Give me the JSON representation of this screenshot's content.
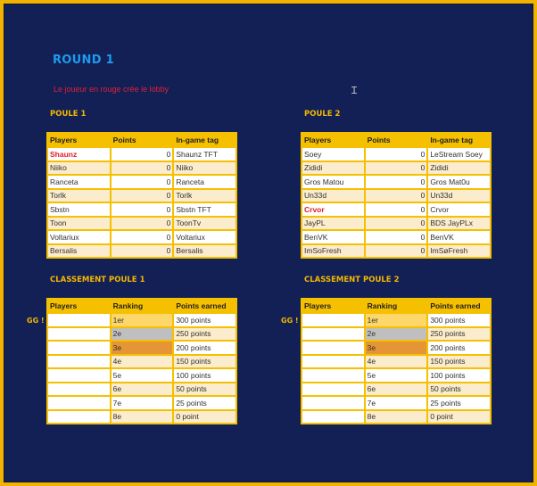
{
  "title": "ROUND 1",
  "note": "Le joueur en rouge crée le lobby",
  "poule1": {
    "heading": "POULE 1",
    "headers": [
      "Players",
      "Points",
      "In-game tag"
    ],
    "rows": [
      [
        "Shaunz",
        "0",
        "Shaunz TFT"
      ],
      [
        "Niiko",
        "0",
        "Niiko"
      ],
      [
        "Ranceta",
        "0",
        "Ranceta"
      ],
      [
        "Torlk",
        "0",
        "Torlk"
      ],
      [
        "Sbstn",
        "0",
        "Sbstn TFT"
      ],
      [
        "Toon",
        "0",
        "ToonTv"
      ],
      [
        "Voltariux",
        "0",
        "Voltariux"
      ],
      [
        "Bersalis",
        "0",
        "Bersalis"
      ]
    ],
    "creator_row": 0
  },
  "poule2": {
    "heading": "POULE 2",
    "headers": [
      "Players",
      "Points",
      "In-game tag"
    ],
    "rows": [
      [
        "Soey",
        "0",
        "LeStream Soey"
      ],
      [
        "Zididi",
        "0",
        "Zididi"
      ],
      [
        "Gros Matou",
        "0",
        "Gros Mat0u"
      ],
      [
        "Un33d",
        "0",
        "Un33d"
      ],
      [
        "Crvor",
        "0",
        "Crvor"
      ],
      [
        "JayPL",
        "0",
        "BDS JayPLx"
      ],
      [
        "BenVK",
        "0",
        "BenVK"
      ],
      [
        "ImSoFresh",
        "0",
        "ImSøFresh"
      ]
    ],
    "creator_row": 4
  },
  "classement1": {
    "heading": "CLASSEMENT POULE 1",
    "gg": "GG !"
  },
  "classement2": {
    "heading": "CLASSEMENT POULE 2",
    "gg": "GG !"
  },
  "ranking": {
    "headers": [
      "Players",
      "Ranking",
      "Points earned"
    ],
    "rows": [
      [
        "",
        "1er",
        "300 points"
      ],
      [
        "",
        "2e",
        "250 points"
      ],
      [
        "",
        "3e",
        "200 points"
      ],
      [
        "",
        "4e",
        "150 points"
      ],
      [
        "",
        "5e",
        "100 points"
      ],
      [
        "",
        "6e",
        "50 points"
      ],
      [
        "",
        "7e",
        "25 points"
      ],
      [
        "",
        "8e",
        "0 point"
      ]
    ]
  },
  "colors": {
    "accent": "#f5c000",
    "background": "#122055",
    "title": "#1e9bf0",
    "creator": "#e0202a",
    "gold": "#fed76a",
    "silver": "#bfbfbf",
    "bronze": "#e59535"
  }
}
